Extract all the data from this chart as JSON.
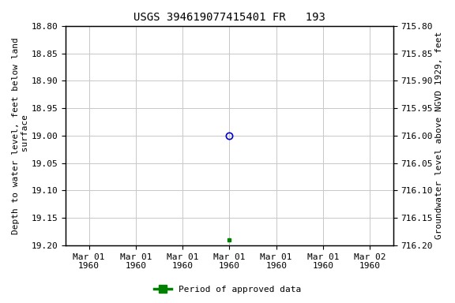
{
  "title": "USGS 394619077415401 FR   193",
  "ylabel_left": "Depth to water level, feet below land\n surface",
  "ylabel_right": "Groundwater level above NGVD 1929, feet",
  "ylim_left": [
    18.8,
    19.2
  ],
  "ylim_right": [
    716.2,
    715.8
  ],
  "yticks_left": [
    18.8,
    18.85,
    18.9,
    18.95,
    19.0,
    19.05,
    19.1,
    19.15,
    19.2
  ],
  "yticks_right": [
    716.2,
    716.15,
    716.1,
    716.05,
    716.0,
    715.95,
    715.9,
    715.85,
    715.8
  ],
  "point_open_x": 3,
  "point_open_y": 19.0,
  "point_open_color": "#0000cc",
  "point_filled_x": 3,
  "point_filled_y": 19.19,
  "point_filled_color": "#008000",
  "legend_label": "Period of approved data",
  "legend_color": "#008000",
  "background_color": "#ffffff",
  "grid_color": "#c8c8c8",
  "title_fontsize": 10,
  "label_fontsize": 8,
  "tick_fontsize": 8,
  "xlim": [
    -0.5,
    6.5
  ],
  "xtick_positions": [
    0,
    1,
    2,
    3,
    4,
    5,
    6
  ],
  "xtick_labels": [
    "Mar 01\n1960",
    "Mar 01\n1960",
    "Mar 01\n1960",
    "Mar 01\n1960",
    "Mar 01\n1960",
    "Mar 01\n1960",
    "Mar 02\n1960"
  ]
}
